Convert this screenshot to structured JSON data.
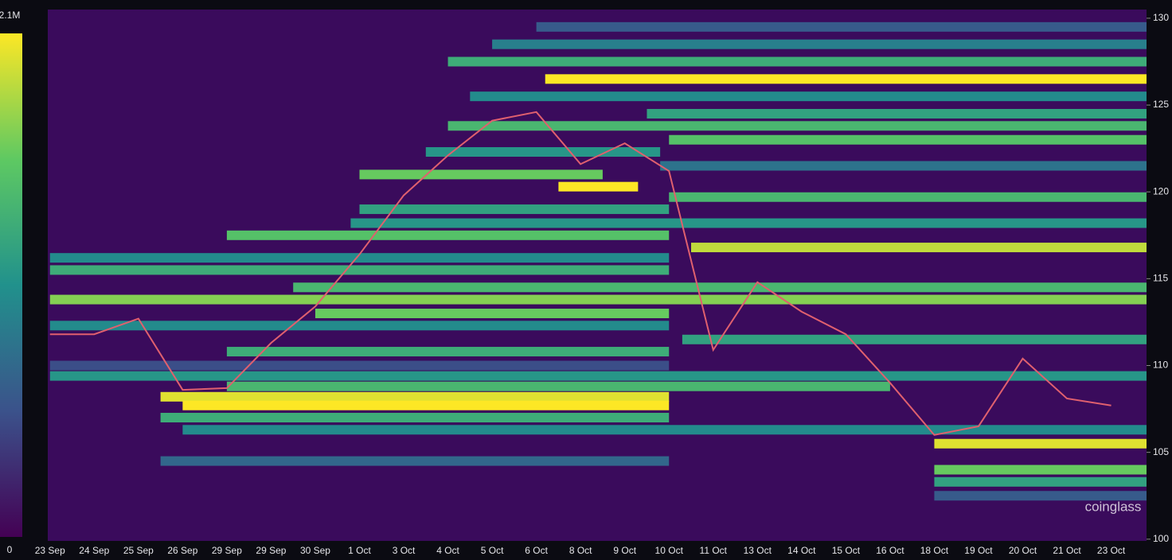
{
  "chart_data": {
    "type": "heatmap",
    "categories": [
      "23 Sep",
      "24 Sep",
      "25 Sep",
      "26 Sep",
      "29 Sep",
      "29 Sep",
      "30 Sep",
      "1 Oct",
      "3 Oct",
      "4 Oct",
      "5 Oct",
      "6 Oct",
      "8 Oct",
      "9 Oct",
      "10 Oct",
      "11 Oct",
      "13 Oct",
      "14 Oct",
      "15 Oct",
      "16 Oct",
      "18 Oct",
      "19 Oct",
      "20 Oct",
      "21 Oct",
      "23 Oct"
    ],
    "xlim": [
      -0.05,
      24.8
    ],
    "ylim": [
      99.9,
      130.5
    ],
    "yticks": [
      130,
      125,
      120,
      115,
      110,
      105,
      100
    ],
    "colorscale": [
      "#440154",
      "#3b528b",
      "#21918c",
      "#5ec962",
      "#fde725"
    ],
    "colorbar_lim": [
      0,
      2100000
    ],
    "colorbar_ticks": [
      0,
      {
        "value": 2100000,
        "label": "2.1M"
      }
    ],
    "bands": {
      "levels": [
        129.5,
        128.5,
        127.5,
        126.5,
        125.5,
        124.5,
        123.8,
        123.0,
        122.3,
        121.5,
        121.0,
        120.3,
        119.7,
        119.0,
        118.2,
        117.5,
        116.8,
        116.2,
        115.5,
        114.5,
        113.8,
        113.0,
        112.3,
        111.5,
        110.8,
        110.0,
        109.4,
        108.8,
        108.2,
        107.7,
        107.0,
        106.3,
        105.5,
        104.5,
        104.0,
        103.3,
        102.5
      ],
      "start": [
        11,
        10,
        9,
        11.2,
        9.5,
        13.5,
        9,
        14,
        8.5,
        13.8,
        7,
        11.5,
        14,
        7,
        6.8,
        4,
        14.5,
        0,
        0,
        5.5,
        0,
        6,
        0,
        14.3,
        4,
        0,
        0,
        4,
        2.5,
        3,
        2.5,
        3,
        20,
        2.5,
        20,
        20,
        20
      ],
      "end": [
        24.8,
        24.8,
        24.8,
        24.8,
        24.8,
        24.8,
        24.8,
        24.8,
        13.8,
        24.8,
        12.5,
        13.3,
        24.8,
        14,
        24.8,
        14,
        24.8,
        14,
        14,
        24.8,
        24.8,
        14,
        14,
        24.8,
        14,
        14,
        24.8,
        19,
        14,
        14,
        14,
        24.8,
        24.8,
        14,
        24.8,
        24.8,
        24.8
      ],
      "values": [
        600000,
        900000,
        1300000,
        2100000,
        1000000,
        1200000,
        1400000,
        1500000,
        1100000,
        800000,
        1600000,
        2100000,
        1400000,
        1200000,
        1100000,
        1500000,
        1900000,
        1000000,
        1300000,
        1400000,
        1700000,
        1600000,
        1000000,
        1200000,
        1300000,
        500000,
        1100000,
        1400000,
        2000000,
        2100000,
        1300000,
        1000000,
        2000000,
        700000,
        1600000,
        1200000,
        600000
      ]
    },
    "price": {
      "color": "#e0606e",
      "values": [
        111.8,
        111.8,
        112.7,
        108.6,
        108.7,
        111.3,
        113.4,
        116.4,
        119.8,
        122.1,
        124.1,
        124.6,
        121.6,
        122.8,
        121.2,
        110.9,
        114.8,
        113.1,
        111.8,
        109.0,
        106.0,
        106.5,
        110.4,
        108.1,
        107.7
      ]
    },
    "watermark": "coinglass"
  }
}
